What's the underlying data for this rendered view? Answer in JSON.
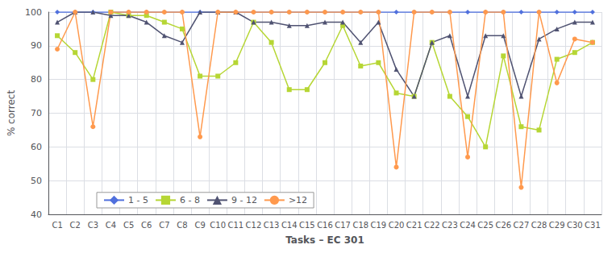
{
  "chart_data": {
    "type": "line",
    "categories": [
      "C1",
      "C2",
      "C3",
      "C4",
      "C5",
      "C6",
      "C7",
      "C8",
      "C9",
      "C10",
      "C11",
      "C12",
      "C13",
      "C14",
      "C15",
      "C16",
      "C17",
      "C18",
      "C19",
      "C20",
      "C21",
      "C22",
      "C23",
      "C24",
      "C25",
      "C26",
      "C27",
      "C28",
      "C29",
      "C30",
      "C31"
    ],
    "series": [
      {
        "name": "1 - 5",
        "marker": "diamond",
        "values": [
          100,
          100,
          100,
          100,
          100,
          100,
          100,
          100,
          100,
          100,
          100,
          100,
          100,
          100,
          100,
          100,
          100,
          100,
          100,
          100,
          100,
          100,
          100,
          100,
          100,
          100,
          100,
          100,
          100,
          100,
          100
        ]
      },
      {
        "name": "6 - 8",
        "marker": "square",
        "values": [
          93,
          88,
          80,
          100,
          99,
          99,
          97,
          95,
          81,
          81,
          85,
          97,
          91,
          77,
          77,
          85,
          96,
          84,
          85,
          76,
          75,
          91,
          75,
          69,
          60,
          87,
          66,
          65,
          86,
          88,
          91
        ]
      },
      {
        "name": "9 - 12",
        "marker": "triangle",
        "values": [
          97,
          100,
          100,
          99,
          99,
          97,
          93,
          91,
          100,
          100,
          100,
          97,
          97,
          96,
          96,
          97,
          97,
          91,
          97,
          83,
          75,
          91,
          93,
          75,
          93,
          93,
          75,
          92,
          95,
          97,
          97
        ]
      },
      {
        "name": ">12",
        "marker": "circle",
        "values": [
          89,
          100,
          66,
          100,
          100,
          100,
          100,
          100,
          63,
          100,
          100,
          100,
          100,
          100,
          100,
          100,
          100,
          100,
          100,
          54,
          100,
          100,
          100,
          57,
          100,
          100,
          48,
          100,
          79,
          92,
          91
        ]
      }
    ],
    "xlabel": "Tasks – EC 301",
    "ylabel": "% correct",
    "ylim": [
      40,
      100
    ],
    "yticks": [
      40,
      50,
      60,
      70,
      80,
      90,
      100
    ],
    "grid": true,
    "legend": "lower left"
  }
}
